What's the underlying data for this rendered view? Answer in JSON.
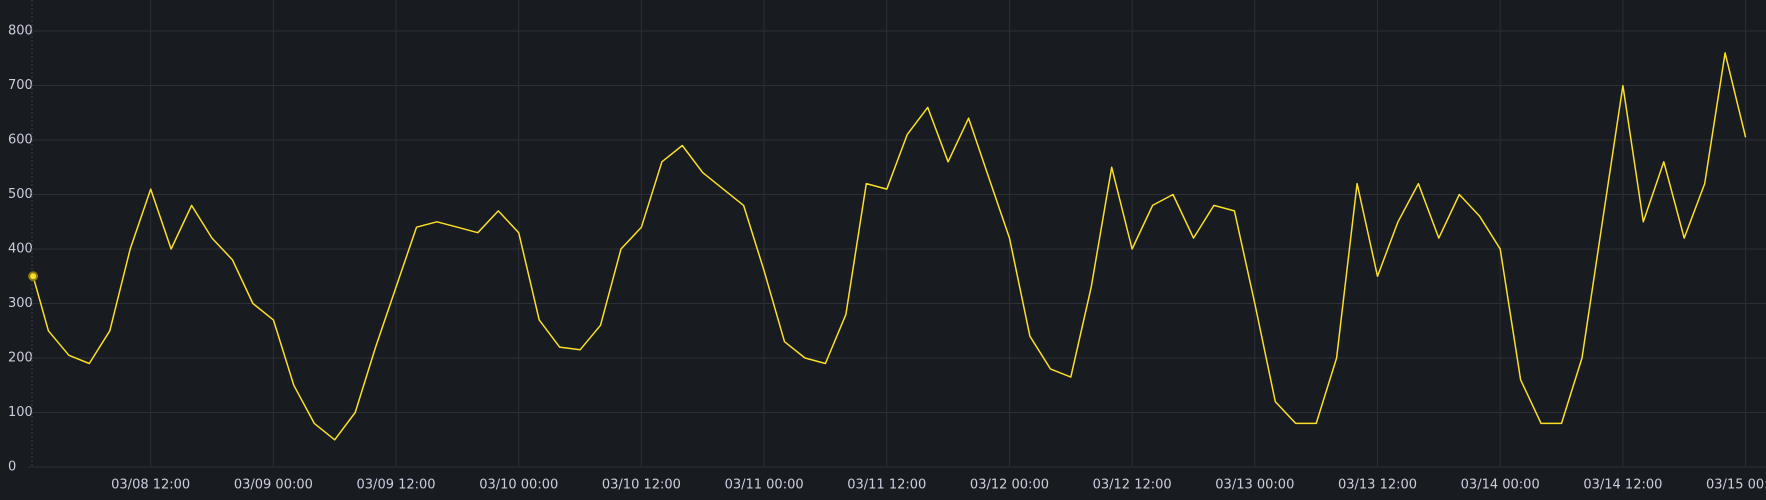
{
  "chart_data": {
    "type": "line",
    "x": [
      "03/08 00:30",
      "03/08 02:00",
      "03/08 04:00",
      "03/08 06:00",
      "03/08 08:00",
      "03/08 10:00",
      "03/08 12:00",
      "03/08 14:00",
      "03/08 16:00",
      "03/08 18:00",
      "03/08 20:00",
      "03/08 22:00",
      "03/09 00:00",
      "03/09 02:00",
      "03/09 04:00",
      "03/09 06:00",
      "03/09 08:00",
      "03/09 10:00",
      "03/09 12:00",
      "03/09 14:00",
      "03/09 16:00",
      "03/09 18:00",
      "03/09 20:00",
      "03/09 22:00",
      "03/10 00:00",
      "03/10 02:00",
      "03/10 04:00",
      "03/10 06:00",
      "03/10 08:00",
      "03/10 10:00",
      "03/10 12:00",
      "03/10 14:00",
      "03/10 16:00",
      "03/10 18:00",
      "03/10 20:00",
      "03/10 22:00",
      "03/11 00:00",
      "03/11 02:00",
      "03/11 04:00",
      "03/11 06:00",
      "03/11 08:00",
      "03/11 10:00",
      "03/11 12:00",
      "03/11 14:00",
      "03/11 16:00",
      "03/11 18:00",
      "03/11 20:00",
      "03/11 22:00",
      "03/12 00:00",
      "03/12 02:00",
      "03/12 04:00",
      "03/12 06:00",
      "03/12 08:00",
      "03/12 10:00",
      "03/12 12:00",
      "03/12 14:00",
      "03/12 16:00",
      "03/12 18:00",
      "03/12 20:00",
      "03/12 22:00",
      "03/13 00:00",
      "03/13 02:00",
      "03/13 04:00",
      "03/13 06:00",
      "03/13 08:00",
      "03/13 10:00",
      "03/13 12:00",
      "03/13 14:00",
      "03/13 16:00",
      "03/13 18:00",
      "03/13 20:00",
      "03/13 22:00",
      "03/14 00:00",
      "03/14 02:00",
      "03/14 04:00",
      "03/14 06:00",
      "03/14 08:00",
      "03/14 10:00",
      "03/14 12:00",
      "03/14 14:00",
      "03/14 16:00",
      "03/14 18:00",
      "03/14 20:00",
      "03/14 22:00",
      "03/15 00:00"
    ],
    "series": [
      {
        "color": "#fade2a",
        "values": [
          350,
          250,
          205,
          190,
          250,
          400,
          510,
          400,
          480,
          420,
          380,
          300,
          270,
          150,
          80,
          50,
          100,
          220,
          330,
          440,
          450,
          440,
          430,
          470,
          430,
          270,
          220,
          215,
          260,
          400,
          440,
          560,
          590,
          540,
          510,
          480,
          360,
          230,
          200,
          190,
          280,
          520,
          510,
          610,
          660,
          560,
          640,
          530,
          420,
          240,
          180,
          165,
          330,
          550,
          400,
          480,
          500,
          420,
          480,
          470,
          300,
          120,
          80,
          80,
          200,
          520,
          350,
          450,
          520,
          420,
          500,
          460,
          400,
          160,
          80,
          80,
          200,
          450,
          700,
          450,
          560,
          420,
          520,
          760,
          605
        ]
      }
    ],
    "xlim": [
      "03/08 00:00",
      "03/15 02:00"
    ],
    "xticks": [
      "03/08 12:00",
      "03/09 00:00",
      "03/09 12:00",
      "03/10 00:00",
      "03/10 12:00",
      "03/11 00:00",
      "03/11 12:00",
      "03/12 00:00",
      "03/12 12:00",
      "03/13 00:00",
      "03/13 12:00",
      "03/14 00:00",
      "03/14 12:00",
      "03/15 00:00"
    ],
    "ylim": [
      0,
      857
    ],
    "yticks": [
      0,
      100,
      200,
      300,
      400,
      500,
      600,
      700,
      800
    ],
    "grid": true
  }
}
